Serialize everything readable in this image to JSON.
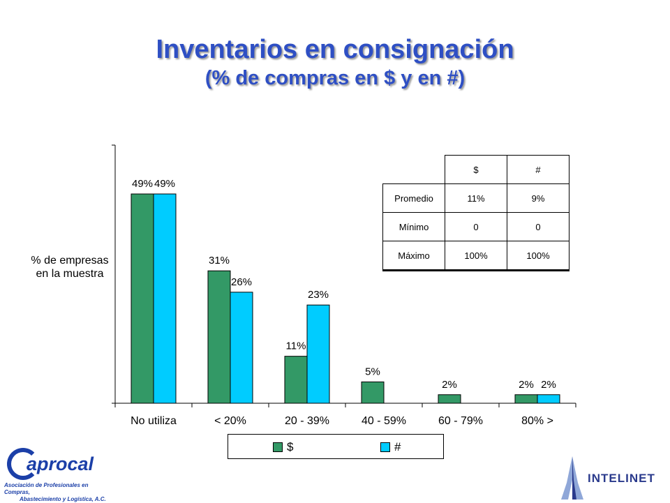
{
  "title": "Inventarios en consignación",
  "subtitle": "(% de compras en $ y en #)",
  "colors": {
    "title": "#2E4FC4",
    "series_dollar": "#339966",
    "series_count": "#00CCFF"
  },
  "chart_data": {
    "type": "bar",
    "title": "Inventarios en consignación",
    "subtitle": "(% de compras en $ y en #)",
    "xlabel": "",
    "ylabel": "% de empresas en la muestra",
    "ylim": [
      0,
      60
    ],
    "grid": false,
    "legend": "bottom",
    "categories": [
      "No utiliza",
      "< 20%",
      "20 - 39%",
      "40 - 59%",
      "60 - 79%",
      "80% >"
    ],
    "series": [
      {
        "name": "$",
        "values": [
          49,
          31,
          11,
          5,
          2,
          2
        ],
        "labels": [
          "49%",
          "31%",
          "11%",
          "5%",
          "2%",
          "2%"
        ],
        "color": "#339966"
      },
      {
        "name": "#",
        "values": [
          49,
          26,
          23,
          null,
          null,
          2
        ],
        "labels": [
          "49%",
          "26%",
          "23%",
          "",
          "",
          "2%"
        ],
        "color": "#00CCFF"
      }
    ]
  },
  "ylabel_lines": [
    "% de empresas",
    "en la muestra"
  ],
  "stats_table": {
    "headers": [
      "",
      "$",
      "#"
    ],
    "rows": [
      [
        "Promedio",
        "11%",
        "9%"
      ],
      [
        "Mínimo",
        "0",
        "0"
      ],
      [
        "Máximo",
        "100%",
        "100%"
      ]
    ]
  },
  "legend": {
    "dollar_label": "$",
    "count_label": "#"
  },
  "logos": {
    "left_word": "aprocal",
    "left_sub_1": "Asociación de Profesionales en Compras,",
    "left_sub_2": "Abastecimiento y Logística, A.C.",
    "right_word": "INTELINET"
  }
}
